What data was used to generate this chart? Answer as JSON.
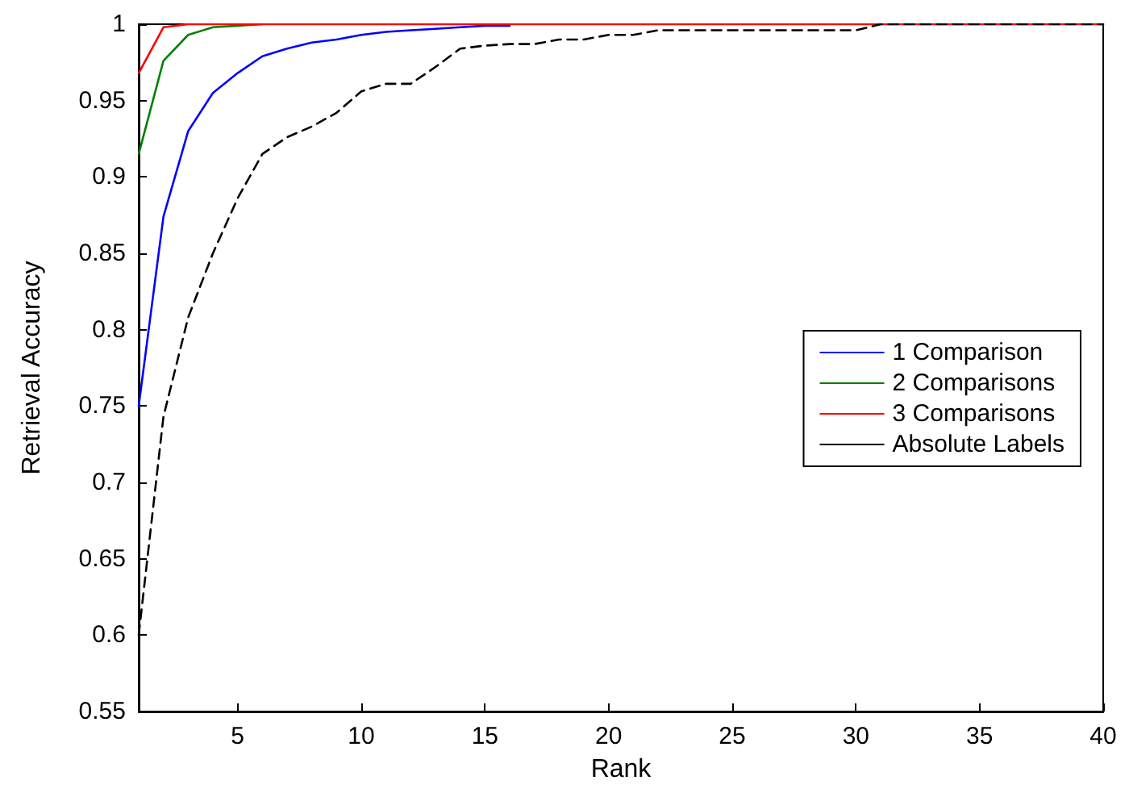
{
  "chart_data": {
    "type": "line",
    "xlabel": "Rank",
    "ylabel": "Retrieval Accuracy",
    "xlim": [
      1,
      40
    ],
    "xticks": [
      5,
      10,
      15,
      20,
      25,
      30,
      35,
      40
    ],
    "ylim": [
      0.55,
      1
    ],
    "yticks": [
      0.55,
      0.6,
      0.65,
      0.7,
      0.75,
      0.8,
      0.85,
      0.9,
      0.95,
      1
    ],
    "grid": false,
    "legend": "right",
    "marker": "none",
    "x": [
      1,
      2,
      3,
      4,
      5,
      6,
      7,
      8,
      9,
      10,
      11,
      12,
      13,
      14,
      15,
      16,
      17,
      18,
      19,
      20,
      21,
      22,
      23,
      24,
      25,
      26,
      27,
      28,
      29,
      30,
      31,
      32,
      33,
      34,
      35,
      36,
      37,
      38,
      39,
      40
    ],
    "series": [
      {
        "name": "1 Comparison",
        "color": "#0000ff",
        "line_style": "solid",
        "values": [
          0.75,
          0.874,
          0.93,
          0.955,
          0.968,
          0.979,
          0.984,
          0.988,
          0.99,
          0.993,
          0.995,
          0.996,
          0.997,
          0.998,
          0.999,
          0.999,
          null,
          null,
          null,
          null,
          null,
          null,
          null,
          null,
          null,
          null,
          null,
          null,
          null,
          null,
          null,
          null,
          null,
          null,
          null,
          null,
          null,
          null,
          null,
          null
        ]
      },
      {
        "name": "2 Comparisons",
        "color": "#008000",
        "line_style": "solid",
        "values": [
          0.915,
          0.976,
          0.993,
          0.998,
          0.999,
          1,
          null,
          null,
          null,
          null,
          null,
          null,
          null,
          null,
          null,
          null,
          null,
          null,
          null,
          null,
          null,
          null,
          null,
          null,
          null,
          null,
          null,
          null,
          null,
          null,
          null,
          null,
          null,
          null,
          null,
          null,
          null,
          null,
          null,
          null
        ]
      },
      {
        "name": "3 Comparisons",
        "color": "#ff0000",
        "line_style": "solid",
        "values": [
          0.968,
          0.998,
          1,
          1,
          1,
          1,
          1,
          1,
          1,
          1,
          1,
          1,
          1,
          1,
          1,
          1,
          1,
          1,
          1,
          1,
          1,
          1,
          1,
          1,
          1,
          1,
          1,
          1,
          1,
          1,
          1,
          1,
          1,
          1,
          1,
          1,
          1,
          1,
          1,
          1
        ]
      },
      {
        "name": "Absolute Labels",
        "color": "#000000",
        "line_style": "dashed",
        "values": [
          0.6,
          0.743,
          0.808,
          0.85,
          0.886,
          0.915,
          0.926,
          0.933,
          0.942,
          0.956,
          0.961,
          0.961,
          0.972,
          0.984,
          0.986,
          0.987,
          0.987,
          0.99,
          0.99,
          0.993,
          0.993,
          0.996,
          0.996,
          0.996,
          0.996,
          0.996,
          0.996,
          0.996,
          0.996,
          0.996,
          1,
          1,
          1,
          1,
          1,
          1,
          1,
          1,
          1,
          1
        ]
      }
    ]
  }
}
